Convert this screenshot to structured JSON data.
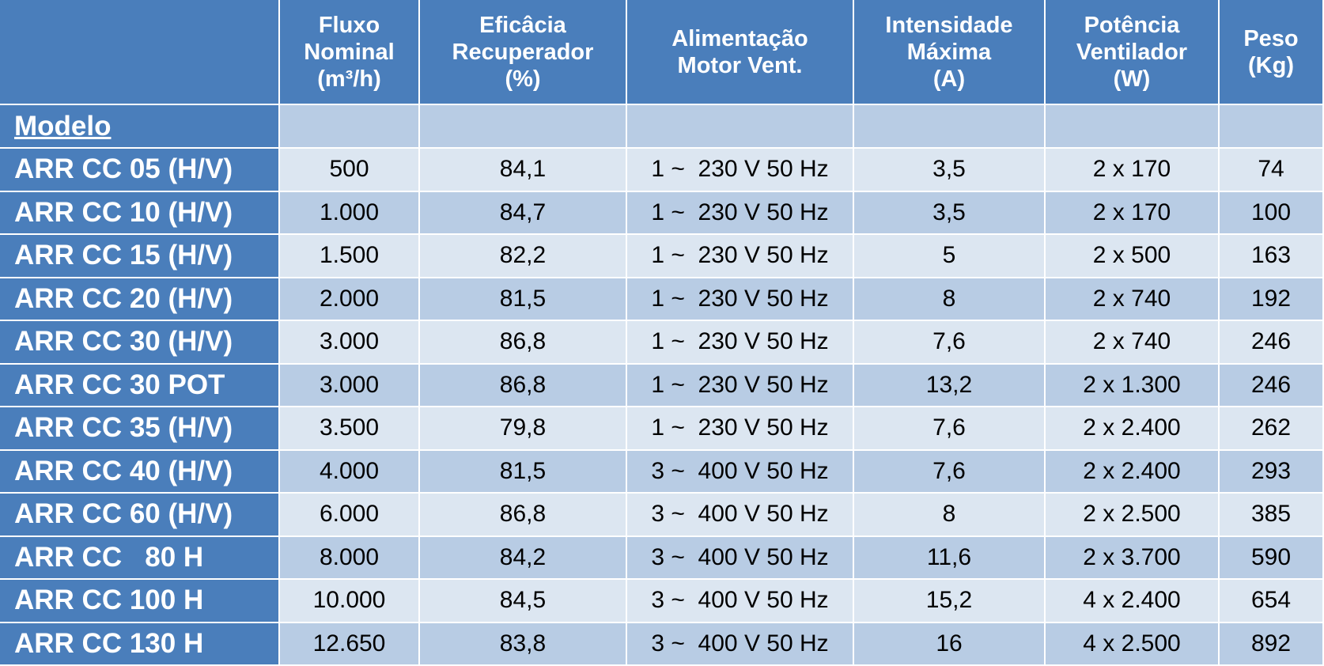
{
  "table": {
    "header": [
      [
        "Fluxo",
        "Nominal",
        "(m³/h)"
      ],
      [
        "Eficâcia",
        "Recuperador",
        "(%)"
      ],
      [
        "Alimentação",
        "Motor Vent."
      ],
      [
        "Intensidade",
        "Máxima",
        "(A)"
      ],
      [
        "Potência",
        "Ventilador",
        "(W)"
      ],
      [
        "Peso",
        "(Kg)"
      ]
    ],
    "row_label_title": "Modelo",
    "rows": [
      [
        "ARR CC 05 (H/V)",
        "500",
        "84,1",
        "1 ~  230 V 50 Hz",
        "3,5",
        "2 x 170",
        "74"
      ],
      [
        "ARR CC 10 (H/V)",
        "1.000",
        "84,7",
        "1 ~  230 V 50 Hz",
        "3,5",
        "2 x 170",
        "100"
      ],
      [
        "ARR CC 15 (H/V)",
        "1.500",
        "82,2",
        "1 ~  230 V 50 Hz",
        "5",
        "2 x 500",
        "163"
      ],
      [
        "ARR CC 20 (H/V)",
        "2.000",
        "81,5",
        "1 ~  230 V 50 Hz",
        "8",
        "2 x 740",
        "192"
      ],
      [
        "ARR CC 30 (H/V)",
        "3.000",
        "86,8",
        "1 ~  230 V 50 Hz",
        "7,6",
        "2 x 740",
        "246"
      ],
      [
        "ARR CC 30 POT",
        "3.000",
        "86,8",
        "1 ~  230 V 50 Hz",
        "13,2",
        "2 x 1.300",
        "246"
      ],
      [
        "ARR CC 35 (H/V)",
        "3.500",
        "79,8",
        "1 ~  230 V 50 Hz",
        "7,6",
        "2 x 2.400",
        "262"
      ],
      [
        "ARR CC 40 (H/V)",
        "4.000",
        "81,5",
        "3 ~  400 V 50 Hz",
        "7,6",
        "2 x 2.400",
        "293"
      ],
      [
        "ARR CC 60 (H/V)",
        "6.000",
        "86,8",
        "3 ~  400 V 50 Hz",
        "8",
        "2 x 2.500",
        "385"
      ],
      [
        "ARR CC   80 H",
        "8.000",
        "84,2",
        "3 ~  400 V 50 Hz",
        "11,6",
        "2 x 3.700",
        "590"
      ],
      [
        "ARR CC 100 H",
        "10.000",
        "84,5",
        "3 ~  400 V 50 Hz",
        "15,2",
        "4 x 2.400",
        "654"
      ],
      [
        "ARR CC 130 H",
        "12.650",
        "83,8",
        "3 ~  400 V 50 Hz",
        "16",
        "4 x 2.500",
        "892"
      ]
    ]
  }
}
